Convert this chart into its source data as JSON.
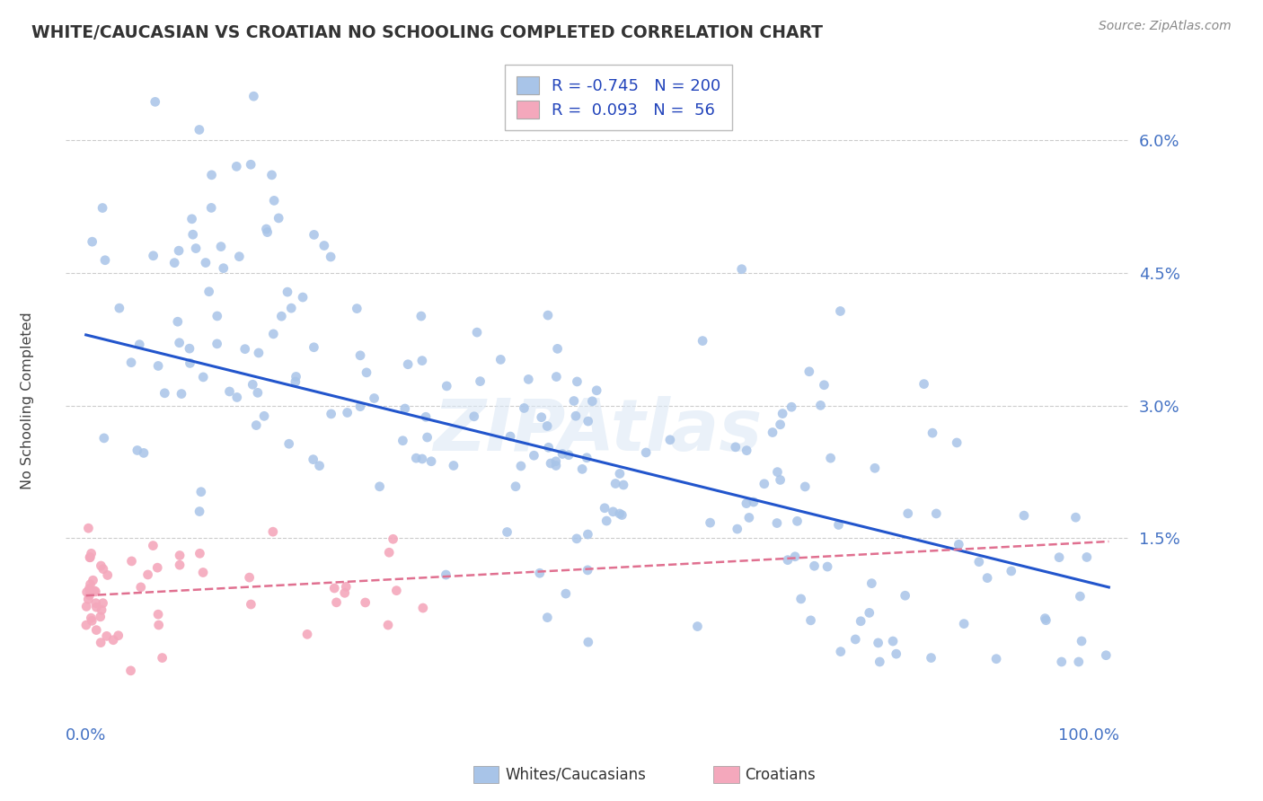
{
  "title": "WHITE/CAUCASIAN VS CROATIAN NO SCHOOLING COMPLETED CORRELATION CHART",
  "source": "Source: ZipAtlas.com",
  "ylabel_values": [
    0.015,
    0.03,
    0.045,
    0.06
  ],
  "ylabel_labels": [
    "1.5%",
    "3.0%",
    "4.5%",
    "6.0%"
  ],
  "xlim": [
    -0.02,
    1.04
  ],
  "ylim": [
    -0.005,
    0.068
  ],
  "legend_blue_r": "-0.745",
  "legend_blue_n": "200",
  "legend_pink_r": "0.093",
  "legend_pink_n": "56",
  "legend_label_blue": "Whites/Caucasians",
  "legend_label_pink": "Croatians",
  "blue_color": "#a8c4e8",
  "pink_color": "#f4a8bc",
  "blue_line_color": "#2255cc",
  "pink_line_color": "#e07090",
  "blue_intercept": 0.038,
  "blue_slope": -0.028,
  "pink_intercept": 0.0085,
  "pink_slope": 0.006,
  "blue_n": 200,
  "pink_n": 56
}
